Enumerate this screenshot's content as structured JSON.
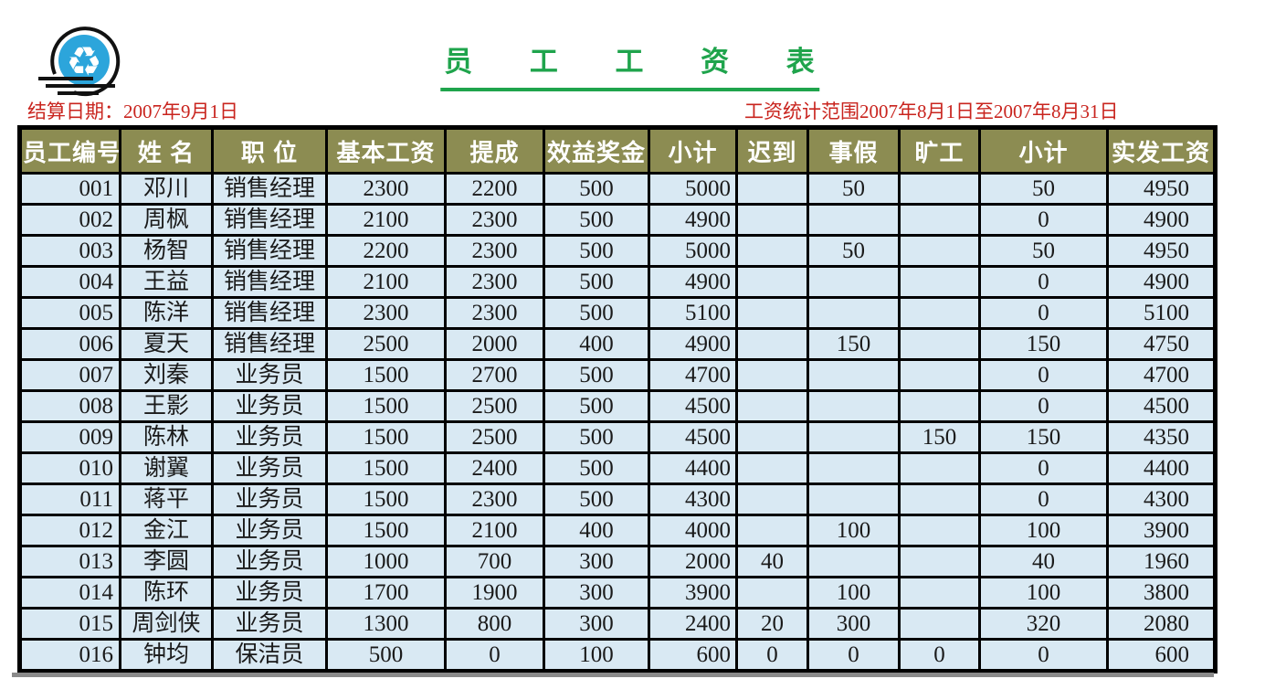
{
  "header": {
    "title": "员 工 工 资 表",
    "settle_date": "结算日期：2007年9月1日",
    "stats_range": "工资统计范围2007年8月1日至2007年8月31日",
    "logo_icon": "recycle-icon"
  },
  "colors": {
    "title_green": "#1FA44C",
    "date_red": "#C9241E",
    "header_olive": "#8C8C52",
    "row_blue": "#D9E9F3",
    "logo_blue": "#2CA5DB",
    "border_black": "#000000"
  },
  "table": {
    "columns": [
      "员工编号",
      "姓 名",
      "职 位",
      "基本工资",
      "提成",
      "效益奖金",
      "小计",
      "迟到",
      "事假",
      "旷工",
      "小计",
      "实发工资"
    ],
    "rows": [
      [
        "001",
        "邓川",
        "销售经理",
        "2300",
        "2200",
        "500",
        "5000",
        "",
        "50",
        "",
        "50",
        "4950"
      ],
      [
        "002",
        "周枫",
        "销售经理",
        "2100",
        "2300",
        "500",
        "4900",
        "",
        "",
        "",
        "0",
        "4900"
      ],
      [
        "003",
        "杨智",
        "销售经理",
        "2200",
        "2300",
        "500",
        "5000",
        "",
        "50",
        "",
        "50",
        "4950"
      ],
      [
        "004",
        "王益",
        "销售经理",
        "2100",
        "2300",
        "500",
        "4900",
        "",
        "",
        "",
        "0",
        "4900"
      ],
      [
        "005",
        "陈洋",
        "销售经理",
        "2300",
        "2300",
        "500",
        "5100",
        "",
        "",
        "",
        "0",
        "5100"
      ],
      [
        "006",
        "夏天",
        "销售经理",
        "2500",
        "2000",
        "400",
        "4900",
        "",
        "150",
        "",
        "150",
        "4750"
      ],
      [
        "007",
        "刘秦",
        "业务员",
        "1500",
        "2700",
        "500",
        "4700",
        "",
        "",
        "",
        "0",
        "4700"
      ],
      [
        "008",
        "王影",
        "业务员",
        "1500",
        "2500",
        "500",
        "4500",
        "",
        "",
        "",
        "0",
        "4500"
      ],
      [
        "009",
        "陈林",
        "业务员",
        "1500",
        "2500",
        "500",
        "4500",
        "",
        "",
        "150",
        "150",
        "4350"
      ],
      [
        "010",
        "谢翼",
        "业务员",
        "1500",
        "2400",
        "500",
        "4400",
        "",
        "",
        "",
        "0",
        "4400"
      ],
      [
        "011",
        "蒋平",
        "业务员",
        "1500",
        "2300",
        "500",
        "4300",
        "",
        "",
        "",
        "0",
        "4300"
      ],
      [
        "012",
        "金江",
        "业务员",
        "1500",
        "2100",
        "400",
        "4000",
        "",
        "100",
        "",
        "100",
        "3900"
      ],
      [
        "013",
        "李圆",
        "业务员",
        "1000",
        "700",
        "300",
        "2000",
        "40",
        "",
        "",
        "40",
        "1960"
      ],
      [
        "014",
        "陈环",
        "业务员",
        "1700",
        "1900",
        "300",
        "3900",
        "",
        "100",
        "",
        "100",
        "3800"
      ],
      [
        "015",
        "周剑侠",
        "业务员",
        "1300",
        "800",
        "300",
        "2400",
        "20",
        "300",
        "",
        "320",
        "2080"
      ],
      [
        "016",
        "钟均",
        "保洁员",
        "500",
        "0",
        "100",
        "600",
        "0",
        "0",
        "0",
        "0",
        "600"
      ]
    ]
  }
}
